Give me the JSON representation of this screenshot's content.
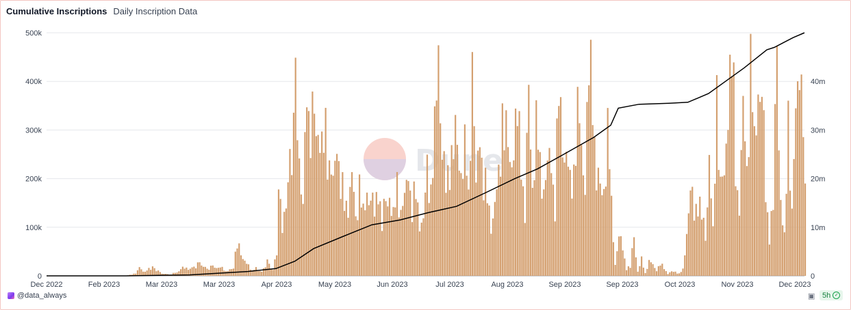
{
  "tabs": {
    "active": "Cumulative Inscriptions",
    "other": "Daily Inscription Data"
  },
  "footer": {
    "author": "@data_always",
    "age": "5h"
  },
  "watermark": {
    "text": "Dune"
  },
  "icons": {
    "avatar": "user-avatar",
    "camera": "camera-icon",
    "check": "check-circle-icon"
  },
  "colors": {
    "bar": "#d4a070",
    "line": "#000000",
    "grid": "#e5e7eb",
    "axis_text": "#374151",
    "badge_bg": "#e7f6ec",
    "badge_text": "#15803d"
  },
  "chart_data": {
    "type": "bar",
    "title": "",
    "grid": "horizontal",
    "x_ticks": [
      "Dec 2022",
      "Feb 2023",
      "Mar 2023",
      "Mar 2023",
      "Apr 2023",
      "May 2023",
      "Jun 2023",
      "Jul 2023",
      "Aug 2023",
      "Sep 2023",
      "Sep 2023",
      "Oct 2023",
      "Nov 2023",
      "Dec 2023"
    ],
    "y_left": {
      "ticks": [
        "0",
        "100k",
        "200k",
        "300k",
        "400k",
        "500k"
      ],
      "range": [
        0,
        500000
      ]
    },
    "y_right": {
      "ticks": [
        "0",
        "10m",
        "20m",
        "30m",
        "40m"
      ],
      "range": [
        0,
        50000000
      ]
    },
    "series": [
      {
        "type": "bar",
        "axis": "left",
        "keypoints": [
          [
            "2022-12-14",
            0
          ],
          [
            "2023-01-25",
            0
          ],
          [
            "2023-01-28",
            3000
          ],
          [
            "2023-01-30",
            5000
          ],
          [
            "2023-02-01",
            22000
          ],
          [
            "2023-02-03",
            8000
          ],
          [
            "2023-02-06",
            14000
          ],
          [
            "2023-02-08",
            18000
          ],
          [
            "2023-02-11",
            9000
          ],
          [
            "2023-02-14",
            4000
          ],
          [
            "2023-02-18",
            3000
          ],
          [
            "2023-02-22",
            10000
          ],
          [
            "2023-02-25",
            20000
          ],
          [
            "2023-02-27",
            14000
          ],
          [
            "2023-03-02",
            18000
          ],
          [
            "2023-03-05",
            28000
          ],
          [
            "2023-03-08",
            15000
          ],
          [
            "2023-03-12",
            18000
          ],
          [
            "2023-03-16",
            17000
          ],
          [
            "2023-03-20",
            9000
          ],
          [
            "2023-03-23",
            18000
          ],
          [
            "2023-03-25",
            72000
          ],
          [
            "2023-03-27",
            45000
          ],
          [
            "2023-03-29",
            37000
          ],
          [
            "2023-04-01",
            12000
          ],
          [
            "2023-04-04",
            15000
          ],
          [
            "2023-04-07",
            8000
          ],
          [
            "2023-04-10",
            28000
          ],
          [
            "2023-04-13",
            12000
          ],
          [
            "2023-04-15",
            50000
          ],
          [
            "2023-04-16",
            190000
          ],
          [
            "2023-04-18",
            115000
          ],
          [
            "2023-04-20",
            160000
          ],
          [
            "2023-04-22",
            240000
          ],
          [
            "2023-04-24",
            330000
          ],
          [
            "2023-04-25",
            370000
          ],
          [
            "2023-04-27",
            200000
          ],
          [
            "2023-04-29",
            150000
          ],
          [
            "2023-05-01",
            330000
          ],
          [
            "2023-05-02",
            400000
          ],
          [
            "2023-05-03",
            320000
          ],
          [
            "2023-05-05",
            350000
          ],
          [
            "2023-05-07",
            330000
          ],
          [
            "2023-05-09",
            280000
          ],
          [
            "2023-05-11",
            280000
          ],
          [
            "2023-05-13",
            220000
          ],
          [
            "2023-05-15",
            175000
          ],
          [
            "2023-05-17",
            240000
          ],
          [
            "2023-05-19",
            195000
          ],
          [
            "2023-05-21",
            145000
          ],
          [
            "2023-05-23",
            150000
          ],
          [
            "2023-05-25",
            250000
          ],
          [
            "2023-05-27",
            110000
          ],
          [
            "2023-05-29",
            200000
          ],
          [
            "2023-05-31",
            125000
          ],
          [
            "2023-06-02",
            140000
          ],
          [
            "2023-06-04",
            160000
          ],
          [
            "2023-06-06",
            120000
          ],
          [
            "2023-06-08",
            170000
          ],
          [
            "2023-06-10",
            125000
          ],
          [
            "2023-06-12",
            160000
          ],
          [
            "2023-06-14",
            175000
          ],
          [
            "2023-06-16",
            135000
          ],
          [
            "2023-06-18",
            170000
          ],
          [
            "2023-06-20",
            125000
          ],
          [
            "2023-06-22",
            150000
          ],
          [
            "2023-06-24",
            185000
          ],
          [
            "2023-06-26",
            140000
          ],
          [
            "2023-06-28",
            175000
          ],
          [
            "2023-06-30",
            110000
          ],
          [
            "2023-07-02",
            140000
          ],
          [
            "2023-07-04",
            220000
          ],
          [
            "2023-07-06",
            175000
          ],
          [
            "2023-07-08",
            300000
          ],
          [
            "2023-07-10",
            385000
          ],
          [
            "2023-07-12",
            250000
          ],
          [
            "2023-07-14",
            175000
          ],
          [
            "2023-07-16",
            200000
          ],
          [
            "2023-07-18",
            330000
          ],
          [
            "2023-07-20",
            280000
          ],
          [
            "2023-07-22",
            220000
          ],
          [
            "2023-07-24",
            300000
          ],
          [
            "2023-07-26",
            140000
          ],
          [
            "2023-07-28",
            420000
          ],
          [
            "2023-07-30",
            175000
          ],
          [
            "2023-08-01",
            250000
          ],
          [
            "2023-08-03",
            200000
          ],
          [
            "2023-08-05",
            170000
          ],
          [
            "2023-08-07",
            100000
          ],
          [
            "2023-08-09",
            180000
          ],
          [
            "2023-08-11",
            200000
          ],
          [
            "2023-08-13",
            320000
          ],
          [
            "2023-08-15",
            300000
          ],
          [
            "2023-08-17",
            190000
          ],
          [
            "2023-08-19",
            250000
          ],
          [
            "2023-08-21",
            330000
          ],
          [
            "2023-08-23",
            220000
          ],
          [
            "2023-08-25",
            150000
          ],
          [
            "2023-08-27",
            410000
          ],
          [
            "2023-08-29",
            180000
          ],
          [
            "2023-08-31",
            350000
          ],
          [
            "2023-09-02",
            200000
          ],
          [
            "2023-09-04",
            160000
          ],
          [
            "2023-09-06",
            225000
          ],
          [
            "2023-09-08",
            200000
          ],
          [
            "2023-09-10",
            145000
          ],
          [
            "2023-09-12",
            410000
          ],
          [
            "2023-09-14",
            270000
          ],
          [
            "2023-09-16",
            300000
          ],
          [
            "2023-09-18",
            190000
          ],
          [
            "2023-09-20",
            200000
          ],
          [
            "2023-09-22",
            350000
          ],
          [
            "2023-09-24",
            220000
          ],
          [
            "2023-09-26",
            175000
          ],
          [
            "2023-09-28",
            440000
          ],
          [
            "2023-09-30",
            340000
          ],
          [
            "2023-10-02",
            240000
          ],
          [
            "2023-10-04",
            200000
          ],
          [
            "2023-10-06",
            170000
          ],
          [
            "2023-10-08",
            335000
          ],
          [
            "2023-10-10",
            130000
          ],
          [
            "2023-10-12",
            20000
          ],
          [
            "2023-10-14",
            80000
          ],
          [
            "2023-10-16",
            50000
          ],
          [
            "2023-10-18",
            15000
          ],
          [
            "2023-10-20",
            20000
          ],
          [
            "2023-10-22",
            85000
          ],
          [
            "2023-10-24",
            10000
          ],
          [
            "2023-10-26",
            35000
          ],
          [
            "2023-10-28",
            5000
          ],
          [
            "2023-10-30",
            30000
          ],
          [
            "2023-11-01",
            20000
          ],
          [
            "2023-11-03",
            10000
          ],
          [
            "2023-11-05",
            25000
          ],
          [
            "2023-11-07",
            15000
          ],
          [
            "2023-11-09",
            5000
          ],
          [
            "2023-11-11",
            10000
          ],
          [
            "2023-11-13",
            8000
          ],
          [
            "2023-11-15",
            5000
          ],
          [
            "2023-11-17",
            12000
          ],
          [
            "2023-11-19",
            75000
          ],
          [
            "2023-11-21",
            180000
          ],
          [
            "2023-11-23",
            110000
          ],
          [
            "2023-11-25",
            155000
          ],
          [
            "2023-11-27",
            145000
          ],
          [
            "2023-11-29",
            75000
          ],
          [
            "2023-12-01",
            280000
          ],
          [
            "2023-12-03",
            90000
          ],
          [
            "2023-12-05",
            340000
          ],
          [
            "2023-12-07",
            190000
          ],
          [
            "2023-12-09",
            175000
          ],
          [
            "2023-12-11",
            310000
          ],
          [
            "2023-12-13",
            505000
          ],
          [
            "2023-12-15",
            200000
          ],
          [
            "2023-12-17",
            160000
          ],
          [
            "2023-12-19",
            400000
          ],
          [
            "2023-12-21",
            200000
          ],
          [
            "2023-12-23",
            475000
          ],
          [
            "2023-12-25",
            250000
          ],
          [
            "2023-12-27",
            320000
          ],
          [
            "2023-12-29",
            390000
          ],
          [
            "2023-12-31",
            150000
          ],
          [
            "2024-01-02",
            80000
          ],
          [
            "2024-01-04",
            175000
          ],
          [
            "2024-01-06",
            480000
          ],
          [
            "2024-01-08",
            170000
          ],
          [
            "2024-01-10",
            80000
          ],
          [
            "2024-01-12",
            290000
          ],
          [
            "2024-01-14",
            130000
          ],
          [
            "2024-01-16",
            300000
          ],
          [
            "2024-01-18",
            390000
          ],
          [
            "2024-01-20",
            365000
          ],
          [
            "2024-01-21",
            190000
          ]
        ]
      },
      {
        "type": "line",
        "axis": "right",
        "keypoints": [
          [
            "2022-12-14",
            0
          ],
          [
            "2023-01-25",
            0
          ],
          [
            "2023-02-28",
            200000
          ],
          [
            "2023-03-31",
            900000
          ],
          [
            "2023-04-15",
            1500000
          ],
          [
            "2023-04-25",
            3000000
          ],
          [
            "2023-05-05",
            5600000
          ],
          [
            "2023-05-20",
            8000000
          ],
          [
            "2023-06-05",
            10500000
          ],
          [
            "2023-06-20",
            11500000
          ],
          [
            "2023-07-05",
            13000000
          ],
          [
            "2023-07-20",
            14300000
          ],
          [
            "2023-08-05",
            17200000
          ],
          [
            "2023-08-20",
            20000000
          ],
          [
            "2023-09-01",
            22000000
          ],
          [
            "2023-09-15",
            25000000
          ],
          [
            "2023-10-01",
            28500000
          ],
          [
            "2023-10-10",
            31000000
          ],
          [
            "2023-10-14",
            34500000
          ],
          [
            "2023-10-25",
            35300000
          ],
          [
            "2023-11-10",
            35500000
          ],
          [
            "2023-11-20",
            35700000
          ],
          [
            "2023-12-01",
            37500000
          ],
          [
            "2023-12-10",
            40000000
          ],
          [
            "2023-12-20",
            42800000
          ],
          [
            "2024-01-01",
            46500000
          ],
          [
            "2024-01-05",
            47000000
          ],
          [
            "2024-01-10",
            48000000
          ],
          [
            "2024-01-15",
            49000000
          ],
          [
            "2024-01-21",
            50000000
          ]
        ]
      }
    ]
  }
}
